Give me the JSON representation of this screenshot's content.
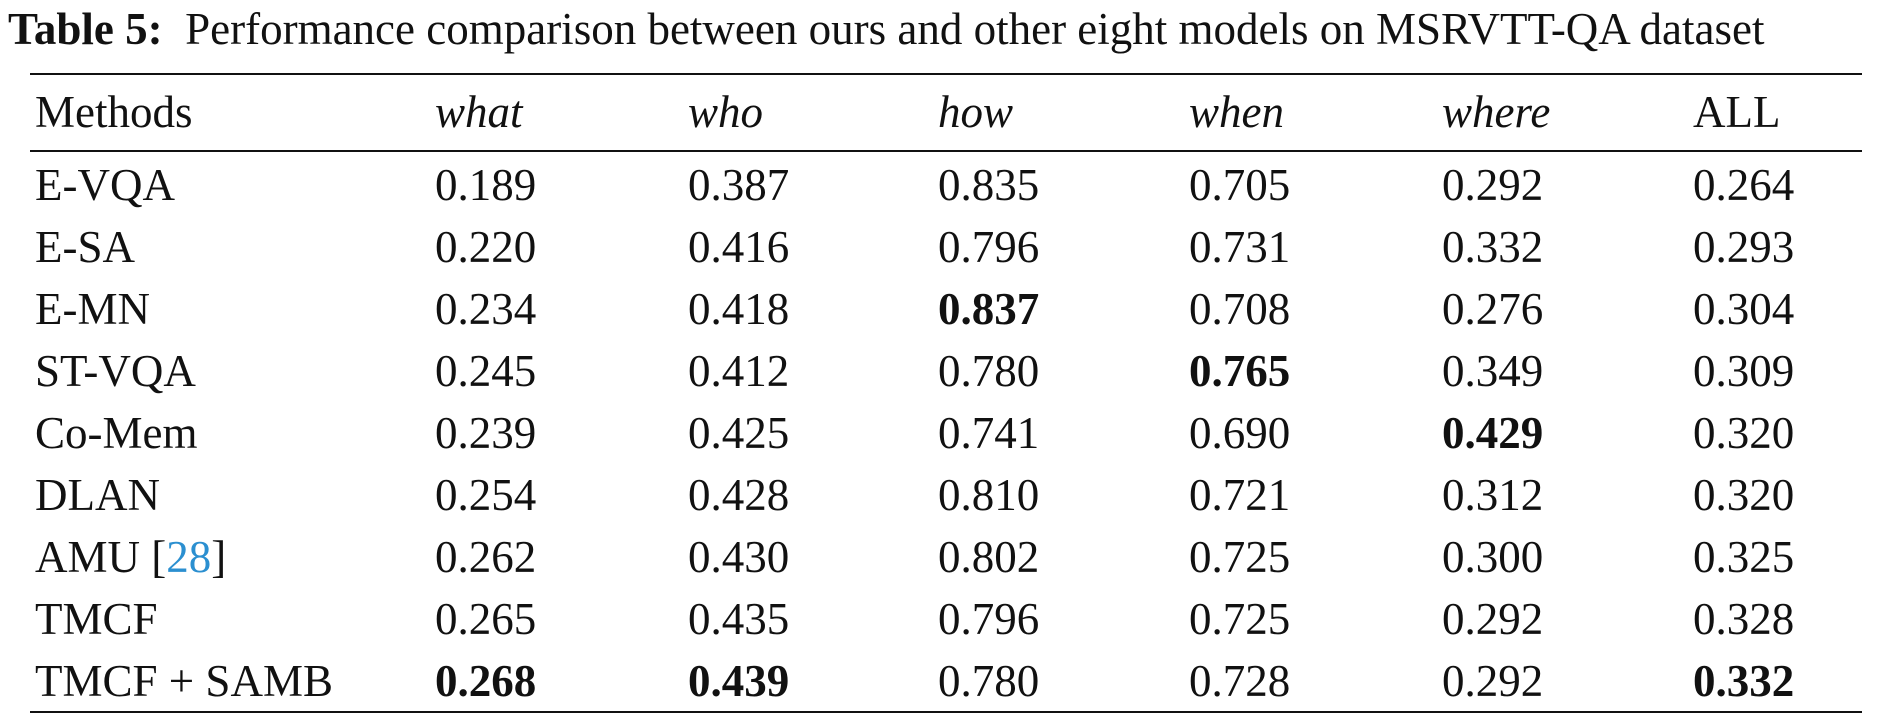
{
  "caption": {
    "label": "Table 5:",
    "text": "Performance comparison between ours and other eight models on MSRVTT-QA dataset"
  },
  "table": {
    "headers": [
      "Methods",
      "what",
      "who",
      "how",
      "when",
      "where",
      "ALL"
    ],
    "rows": [
      {
        "method": "E-VQA",
        "citation": "",
        "values": [
          "0.189",
          "0.387",
          "0.835",
          "0.705",
          "0.292",
          "0.264"
        ],
        "bold": [
          false,
          false,
          false,
          false,
          false,
          false
        ]
      },
      {
        "method": "E-SA",
        "citation": "",
        "values": [
          "0.220",
          "0.416",
          "0.796",
          "0.731",
          "0.332",
          "0.293"
        ],
        "bold": [
          false,
          false,
          false,
          false,
          false,
          false
        ]
      },
      {
        "method": "E-MN",
        "citation": "",
        "values": [
          "0.234",
          "0.418",
          "0.837",
          "0.708",
          "0.276",
          "0.304"
        ],
        "bold": [
          false,
          false,
          true,
          false,
          false,
          false
        ]
      },
      {
        "method": "ST-VQA",
        "citation": "",
        "values": [
          "0.245",
          "0.412",
          "0.780",
          "0.765",
          "0.349",
          "0.309"
        ],
        "bold": [
          false,
          false,
          false,
          true,
          false,
          false
        ]
      },
      {
        "method": "Co-Mem",
        "citation": "",
        "values": [
          "0.239",
          "0.425",
          "0.741",
          "0.690",
          "0.429",
          "0.320"
        ],
        "bold": [
          false,
          false,
          false,
          false,
          true,
          false
        ]
      },
      {
        "method": "DLAN",
        "citation": "",
        "values": [
          "0.254",
          "0.428",
          "0.810",
          "0.721",
          "0.312",
          "0.320"
        ],
        "bold": [
          false,
          false,
          false,
          false,
          false,
          false
        ]
      },
      {
        "method": "AMU",
        "citation": "28",
        "values": [
          "0.262",
          "0.430",
          "0.802",
          "0.725",
          "0.300",
          "0.325"
        ],
        "bold": [
          false,
          false,
          false,
          false,
          false,
          false
        ]
      },
      {
        "method": "TMCF",
        "citation": "",
        "values": [
          "0.265",
          "0.435",
          "0.796",
          "0.725",
          "0.292",
          "0.328"
        ],
        "bold": [
          false,
          false,
          false,
          false,
          false,
          false
        ]
      },
      {
        "method": "TMCF + SAMB",
        "citation": "",
        "values": [
          "0.268",
          "0.439",
          "0.780",
          "0.728",
          "0.292",
          "0.332"
        ],
        "bold": [
          true,
          true,
          false,
          false,
          false,
          true
        ]
      }
    ]
  },
  "colors": {
    "text": "#111111",
    "citation": "#2b8fd0",
    "background": "#ffffff"
  }
}
